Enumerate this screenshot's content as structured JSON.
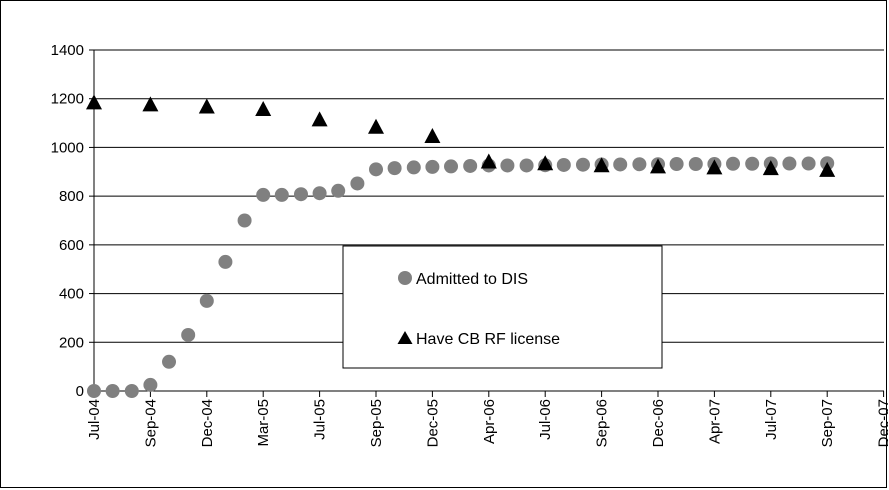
{
  "chart_data": {
    "type": "scatter",
    "x_tick_labels": [
      "Jul-04",
      "Sep-04",
      "Dec-04",
      "Mar-05",
      "Jul-05",
      "Sep-05",
      "Dec-05",
      "Apr-06",
      "Jul-06",
      "Sep-06",
      "Dec-06",
      "Apr-07",
      "Jul-07",
      "Sep-07",
      "Dec-07"
    ],
    "ylim": [
      0,
      1400
    ],
    "y_ticks": [
      "0",
      "200",
      "400",
      "600",
      "800",
      "1000",
      "1200",
      "1400"
    ],
    "grid": "horizontal",
    "legend_position": "center",
    "series": [
      {
        "name": "Admitted to DIS",
        "marker": "circle",
        "color": "#808080",
        "x": [
          0,
          0.33,
          0.67,
          1,
          1.33,
          1.67,
          2,
          2.33,
          2.67,
          3,
          3.33,
          3.67,
          4,
          4.33,
          4.67,
          5,
          5.33,
          5.67,
          6,
          6.33,
          6.67,
          7,
          7.33,
          7.67,
          8,
          8.33,
          8.67,
          9,
          9.33,
          9.67,
          10,
          10.33,
          10.67,
          11,
          11.33,
          11.67,
          12,
          12.33,
          12.67,
          13
        ],
        "values": [
          0,
          0,
          0,
          25,
          120,
          230,
          370,
          530,
          700,
          805,
          805,
          808,
          812,
          822,
          852,
          910,
          915,
          918,
          920,
          922,
          924,
          926,
          926,
          926,
          927,
          928,
          929,
          930,
          930,
          931,
          931,
          932,
          932,
          932,
          933,
          933,
          934,
          934,
          934,
          935
        ]
      },
      {
        "name": "Have CB RF license",
        "marker": "triangle",
        "color": "#000000",
        "x": [
          0,
          1,
          2,
          3,
          4,
          5,
          6,
          7,
          8,
          9,
          10,
          11,
          12,
          13
        ],
        "values": [
          1185,
          1177,
          1168,
          1158,
          1115,
          1085,
          1047,
          942,
          935,
          927,
          922,
          918,
          915,
          908
        ]
      }
    ]
  }
}
